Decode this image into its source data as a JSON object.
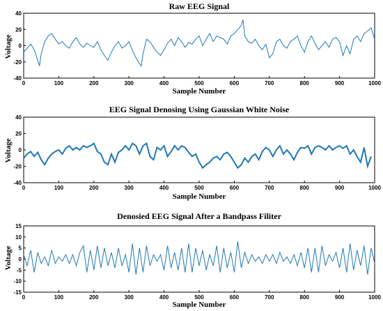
{
  "chart_data": [
    {
      "type": "line",
      "title": "Raw EEG Signal",
      "xlabel": "Sample Number",
      "ylabel": "Voltage",
      "xlim": [
        0,
        1000
      ],
      "ylim": [
        -40,
        40
      ],
      "xticks": [
        0,
        100,
        200,
        300,
        400,
        500,
        600,
        700,
        800,
        900,
        1000
      ],
      "yticks": [
        40,
        20,
        0,
        -20,
        -40
      ],
      "color": "#1f77b4",
      "series": [
        {
          "x": [
            0,
            10,
            20,
            30,
            40,
            45,
            50,
            60,
            70,
            80,
            90,
            100,
            110,
            120,
            130,
            140,
            150,
            160,
            170,
            180,
            190,
            200,
            210,
            220,
            230,
            240,
            250,
            260,
            270,
            280,
            290,
            300,
            310,
            320,
            330,
            335,
            340,
            350,
            360,
            370,
            380,
            390,
            400,
            410,
            420,
            430,
            440,
            450,
            460,
            470,
            480,
            490,
            500,
            510,
            520,
            530,
            540,
            550,
            560,
            570,
            580,
            590,
            600,
            610,
            620,
            625,
            630,
            640,
            650,
            660,
            670,
            680,
            690,
            700,
            710,
            720,
            730,
            740,
            750,
            760,
            770,
            780,
            790,
            800,
            810,
            820,
            830,
            840,
            850,
            860,
            870,
            880,
            890,
            900,
            910,
            920,
            930,
            940,
            950,
            960,
            970,
            980,
            990,
            1000
          ],
          "y": [
            -8,
            -3,
            2,
            -5,
            -18,
            -25,
            -10,
            5,
            12,
            15,
            8,
            2,
            5,
            0,
            -3,
            5,
            10,
            2,
            -2,
            3,
            0,
            -2,
            5,
            -5,
            -12,
            -18,
            -8,
            0,
            5,
            -3,
            0,
            5,
            -6,
            -15,
            -22,
            -25,
            -10,
            8,
            5,
            -2,
            -8,
            -12,
            -5,
            3,
            8,
            0,
            10,
            5,
            -2,
            4,
            2,
            8,
            12,
            0,
            8,
            15,
            5,
            12,
            10,
            8,
            2,
            12,
            15,
            20,
            25,
            32,
            12,
            5,
            3,
            8,
            0,
            -5,
            2,
            -15,
            -10,
            5,
            8,
            0,
            -3,
            5,
            8,
            12,
            0,
            -8,
            5,
            12,
            3,
            -5,
            0,
            5,
            -2,
            8,
            10,
            5,
            -12,
            0,
            -10,
            8,
            12,
            5,
            15,
            18,
            22,
            8
          ]
        }
      ]
    },
    {
      "type": "line",
      "title": "EEG Signal Denosing Using Gaussian White Noise",
      "xlabel": "Sample Number",
      "ylabel": "Voltage",
      "xlim": [
        0,
        1000
      ],
      "ylim": [
        -40,
        40
      ],
      "xticks": [
        0,
        100,
        200,
        300,
        400,
        500,
        600,
        700,
        800,
        900,
        1000
      ],
      "yticks": [
        40,
        20,
        0,
        -20,
        -40
      ],
      "color": "#1f77b4",
      "series": [
        {
          "x": [
            0,
            10,
            20,
            30,
            40,
            50,
            60,
            70,
            80,
            90,
            100,
            110,
            120,
            130,
            140,
            150,
            160,
            170,
            180,
            190,
            200,
            210,
            220,
            230,
            240,
            250,
            260,
            270,
            280,
            290,
            300,
            310,
            320,
            330,
            340,
            350,
            360,
            370,
            380,
            390,
            400,
            410,
            420,
            430,
            440,
            450,
            460,
            470,
            480,
            490,
            500,
            510,
            520,
            530,
            540,
            550,
            560,
            570,
            580,
            590,
            600,
            610,
            620,
            630,
            640,
            650,
            660,
            670,
            680,
            690,
            700,
            710,
            720,
            730,
            740,
            750,
            760,
            770,
            780,
            790,
            800,
            810,
            820,
            830,
            840,
            850,
            860,
            870,
            880,
            890,
            900,
            910,
            920,
            930,
            940,
            950,
            960,
            970,
            980,
            990
          ],
          "y": [
            -10,
            -5,
            -2,
            -8,
            -3,
            -12,
            -18,
            -10,
            -5,
            -2,
            0,
            -5,
            2,
            5,
            0,
            3,
            0,
            5,
            3,
            5,
            8,
            -2,
            -5,
            -15,
            -18,
            -5,
            -15,
            -3,
            0,
            5,
            0,
            8,
            5,
            -5,
            5,
            8,
            -8,
            -12,
            3,
            0,
            5,
            -8,
            -2,
            5,
            0,
            5,
            3,
            -3,
            -8,
            -5,
            -15,
            -22,
            -18,
            -15,
            -10,
            -8,
            -12,
            -5,
            -3,
            -8,
            -15,
            -22,
            -18,
            -10,
            -15,
            -8,
            -5,
            -12,
            -2,
            3,
            0,
            -8,
            0,
            5,
            -5,
            0,
            -5,
            -12,
            -3,
            3,
            2,
            5,
            -5,
            3,
            5,
            3,
            0,
            5,
            0,
            3,
            5,
            2,
            5,
            -5,
            0,
            -8,
            -15,
            3,
            -20,
            -8
          ]
        }
      ]
    },
    {
      "type": "line",
      "title": "Denosied EEG Signal After a Bandpass Filiter",
      "xlabel": "Sample Number",
      "ylabel": "Voltage",
      "xlim": [
        0,
        1000
      ],
      "ylim": [
        -15,
        15
      ],
      "xticks": [
        0,
        100,
        200,
        300,
        400,
        500,
        600,
        700,
        800,
        900,
        1000
      ],
      "yticks": [
        15,
        10,
        5,
        0,
        -5,
        -10,
        -15
      ],
      "color": "#1f77b4",
      "series": [
        {
          "x": [
            0,
            10,
            20,
            30,
            40,
            50,
            60,
            70,
            80,
            90,
            100,
            110,
            120,
            130,
            140,
            150,
            160,
            170,
            180,
            190,
            200,
            210,
            220,
            230,
            240,
            250,
            260,
            270,
            280,
            290,
            300,
            310,
            320,
            330,
            340,
            350,
            360,
            370,
            380,
            390,
            400,
            410,
            420,
            430,
            440,
            450,
            460,
            470,
            480,
            490,
            500,
            510,
            520,
            530,
            540,
            550,
            560,
            570,
            580,
            590,
            600,
            610,
            620,
            630,
            640,
            650,
            660,
            670,
            680,
            690,
            700,
            710,
            720,
            730,
            740,
            750,
            760,
            770,
            780,
            790,
            800,
            810,
            820,
            830,
            840,
            850,
            860,
            870,
            880,
            890,
            900,
            910,
            920,
            930,
            940,
            950,
            960,
            970,
            980,
            990,
            1000
          ],
          "y": [
            2,
            -3,
            4,
            -6,
            3,
            -2,
            1,
            -3,
            4,
            -2,
            1,
            -1,
            2,
            -2,
            2,
            -3,
            3,
            6,
            -6,
            4,
            -5,
            6,
            -4,
            5,
            -3,
            3,
            -4,
            5,
            -3,
            2,
            -6,
            7,
            -7,
            5,
            -6,
            6,
            -3,
            2,
            -1,
            2,
            -5,
            6,
            -4,
            3,
            -5,
            5,
            -6,
            7,
            -6,
            5,
            -3,
            4,
            -5,
            2,
            -3,
            6,
            -6,
            5,
            -4,
            3,
            -6,
            8,
            -4,
            3,
            -2,
            2,
            -1,
            1,
            -2,
            2,
            -1,
            2,
            -2,
            3,
            -1,
            1,
            -2,
            2,
            -3,
            3,
            -4,
            5,
            -6,
            5,
            -6,
            6,
            -3,
            2,
            -1,
            3,
            -4,
            5,
            -6,
            7,
            -5,
            4,
            -3,
            6,
            -7,
            5,
            -2
          ]
        }
      ]
    }
  ]
}
